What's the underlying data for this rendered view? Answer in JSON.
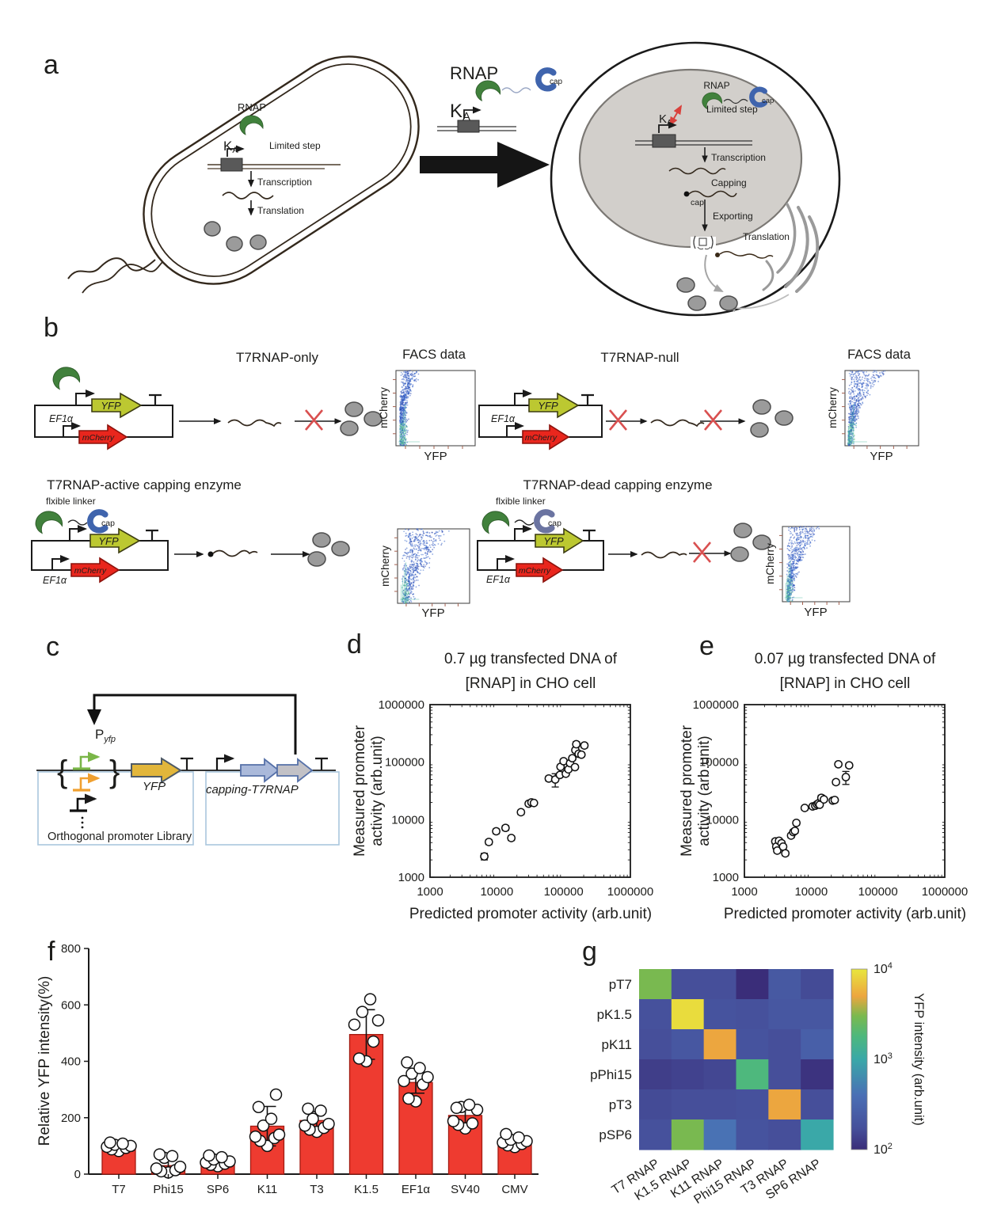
{
  "panel_a": {
    "label": "a",
    "bact": {
      "rnap": "RNAP",
      "k": "K",
      "k_sub": "A",
      "limited": "Limited step",
      "transcription": "Transcription",
      "translation": "Translation"
    },
    "mid": {
      "rnap": "RNAP",
      "k": "K",
      "k_sub": "A",
      "cap": "cap"
    },
    "cell": {
      "rnap": "RNAP",
      "k": "K",
      "k_sub": "A",
      "cap": "cap",
      "limited": "Limited step",
      "transcription": "Transcription",
      "capping": "Capping",
      "cap2": "cap",
      "exporting": "Exporting",
      "translation": "Translation"
    }
  },
  "panel_b": {
    "label": "b",
    "groups": [
      {
        "title": "T7RNAP-only",
        "facs_title": "FACS data",
        "yfp": "YFP",
        "mcherry": "mCherry",
        "ef1a": "EF1α",
        "facs_x": "YFP",
        "facs_y": "mCherry"
      },
      {
        "title": "T7RNAP-null",
        "facs_title": "FACS data",
        "yfp": "YFP",
        "mcherry": "mCherry",
        "ef1a": "EF1α",
        "facs_x": "YFP",
        "facs_y": "mCherry"
      },
      {
        "title": "T7RNAP-active capping enzyme",
        "linker": "flxible linker",
        "cap": "cap",
        "yfp": "YFP",
        "mcherry": "mCherry",
        "ef1a": "EF1α",
        "facs_x": "YFP",
        "facs_y": "mCherry"
      },
      {
        "title": "T7RNAP-dead capping enzyme",
        "linker": "flxible linker",
        "cap": "cap",
        "yfp": "YFP",
        "mcherry": "mCherry",
        "ef1a": "EF1α",
        "facs_x": "YFP",
        "facs_y": "mCherry"
      }
    ]
  },
  "panel_c": {
    "label": "c",
    "p": "P",
    "p_sub": "yfp",
    "yfp": "YFP",
    "library": "Orthogonal promoter Library",
    "capping_t7": "capping-T7RNAP"
  },
  "colors": {
    "rnap_green": "#41813c",
    "cap_blue": "#3f64ad",
    "cap_dead": "#6b74a1",
    "yfp_arrow": "#bcc831",
    "mcherry_arrow": "#e9261d",
    "bar_red": "#ee3b30",
    "red_x": "#d95050",
    "protein_gray": "#9b9b9b",
    "nucleus_gray": "#d2cfcb",
    "box_blue_border": "#aac6dd",
    "promoter_green": "#7ab648",
    "promoter_orange": "#f0a030",
    "yfp_gold": "#e2b63b",
    "capping_arrow1": "#aab9da",
    "capping_arrow2": "#c2c1c6"
  },
  "chart_data": [
    {
      "id": "panel_d",
      "type": "scatter",
      "panel_label": "d",
      "title_lines": [
        "0.7 µg transfected DNA of",
        "[RNAP] in CHO cell"
      ],
      "xlabel": "Predicted promoter activity (arb.unit)",
      "ylabel_lines": [
        "Measured promoter",
        "activity (arb.unit)"
      ],
      "xticks": [
        "1000",
        "10000",
        "100000",
        "1000000"
      ],
      "yticks": [
        "1000",
        "10000",
        "100000",
        "1000000"
      ],
      "xlim": [
        1000,
        1000000
      ],
      "ylim": [
        1000,
        1000000
      ],
      "log": true,
      "points": [
        [
          6500,
          2300,
          300
        ],
        [
          7600,
          4100,
          400
        ],
        [
          9800,
          6300,
          600
        ],
        [
          13500,
          7200,
          700
        ],
        [
          16500,
          4800,
          450
        ],
        [
          23000,
          13500,
          1200
        ],
        [
          30000,
          19000,
          1500
        ],
        [
          33000,
          20000,
          1500
        ],
        [
          36000,
          19500,
          1300
        ],
        [
          60000,
          52000,
          5000
        ],
        [
          75000,
          50000,
          13000
        ],
        [
          88000,
          60000,
          5000
        ],
        [
          90000,
          83000,
          6000
        ],
        [
          100000,
          104000,
          8000
        ],
        [
          108000,
          63000,
          5000
        ],
        [
          118000,
          75000,
          6000
        ],
        [
          125000,
          96000,
          7000
        ],
        [
          135000,
          117000,
          9000
        ],
        [
          148000,
          82000,
          6000
        ],
        [
          150000,
          162000,
          13000
        ],
        [
          155000,
          205000,
          22000
        ],
        [
          168000,
          140000,
          11000
        ],
        [
          185000,
          135000,
          10000
        ],
        [
          205000,
          195000,
          18000
        ]
      ]
    },
    {
      "id": "panel_e",
      "type": "scatter",
      "panel_label": "e",
      "title_lines": [
        "0.07 µg transfected DNA of",
        "[RNAP] in CHO cell"
      ],
      "xlabel": "Predicted promoter activity (arb.unit)",
      "ylabel_lines": [
        "Measured promoter",
        "activity (arb.unit)"
      ],
      "xticks": [
        "1000",
        "10000",
        "100000",
        "1000000"
      ],
      "yticks": [
        "1000",
        "10000",
        "100000",
        "1000000"
      ],
      "xlim": [
        1000,
        1000000
      ],
      "ylim": [
        1000,
        1000000
      ],
      "log": true,
      "points": [
        [
          2900,
          4200,
          400
        ],
        [
          3000,
          3400,
          300
        ],
        [
          3100,
          2900,
          260
        ],
        [
          3300,
          4300,
          380
        ],
        [
          3600,
          3900,
          350
        ],
        [
          3800,
          3400,
          300
        ],
        [
          4100,
          2600,
          240
        ],
        [
          5000,
          5300,
          480
        ],
        [
          5400,
          6100,
          550
        ],
        [
          5700,
          6400,
          580
        ],
        [
          6000,
          8800,
          800
        ],
        [
          8000,
          16000,
          1300
        ],
        [
          10500,
          17000,
          1300
        ],
        [
          11500,
          17500,
          1300
        ],
        [
          12200,
          18500,
          1400
        ],
        [
          12800,
          19200,
          1400
        ],
        [
          13400,
          18200,
          1300
        ],
        [
          14200,
          24000,
          2600
        ],
        [
          15500,
          22500,
          1700
        ],
        [
          21000,
          21500,
          1500
        ],
        [
          22500,
          22000,
          1600
        ],
        [
          23500,
          45000,
          4000
        ],
        [
          25500,
          92000,
          7000
        ],
        [
          33000,
          55000,
          14000
        ],
        [
          37000,
          88000,
          7000
        ]
      ]
    },
    {
      "id": "panel_f",
      "type": "bar",
      "panel_label": "f",
      "ylabel": "Relative YFP intensity(%)",
      "ylim": [
        0,
        800
      ],
      "yticks": [
        0,
        200,
        400,
        600,
        800
      ],
      "categories": [
        "T7",
        "Phi15",
        "SP6",
        "K11",
        "T3",
        "K1.5",
        "EF1α",
        "SV40",
        "CMV"
      ],
      "values": [
        95,
        30,
        42,
        170,
        190,
        495,
        325,
        208,
        112
      ],
      "errors": [
        12,
        20,
        14,
        70,
        32,
        88,
        38,
        32,
        14
      ],
      "points": [
        [
          82,
          88,
          93,
          97,
          100,
          104,
          108,
          112
        ],
        [
          6,
          10,
          14,
          20,
          26,
          58,
          64,
          70
        ],
        [
          28,
          33,
          37,
          41,
          45,
          52,
          60,
          66
        ],
        [
          100,
          118,
          128,
          133,
          140,
          172,
          196,
          238,
          282
        ],
        [
          150,
          158,
          164,
          172,
          178,
          196,
          225,
          232
        ],
        [
          400,
          410,
          470,
          530,
          545,
          575,
          620
        ],
        [
          258,
          268,
          318,
          330,
          344,
          356,
          376,
          396
        ],
        [
          162,
          175,
          180,
          188,
          228,
          238,
          246,
          235
        ],
        [
          96,
          102,
          107,
          112,
          117,
          122,
          130,
          142
        ]
      ]
    },
    {
      "id": "panel_g",
      "type": "heatmap",
      "panel_label": "g",
      "rows": [
        "pT7",
        "pK1.5",
        "pK11",
        "pPhi15",
        "pT3",
        "pSP6"
      ],
      "cols": [
        "T7 RNAP",
        "K1.5 RNAP",
        "K11 RNAP",
        "Phi15 RNAP",
        "T3 RNAP",
        "SP6 RNAP"
      ],
      "values": [
        [
          3000,
          170,
          170,
          70,
          220,
          160
        ],
        [
          180,
          9000,
          190,
          180,
          210,
          210
        ],
        [
          170,
          210,
          5000,
          190,
          170,
          260
        ],
        [
          130,
          140,
          150,
          1800,
          170,
          110
        ],
        [
          160,
          170,
          170,
          180,
          5000,
          170
        ],
        [
          180,
          3000,
          420,
          190,
          170,
          1000
        ]
      ],
      "scale": "log",
      "vmin": 100,
      "vmax": 10000,
      "colormap": [
        [
          0,
          "#3a2d79"
        ],
        [
          0.12,
          "#46509b"
        ],
        [
          0.3,
          "#4a6fb5"
        ],
        [
          0.5,
          "#3aa8a8"
        ],
        [
          0.63,
          "#4eb87c"
        ],
        [
          0.74,
          "#7ab94f"
        ],
        [
          0.85,
          "#eda63f"
        ],
        [
          1,
          "#e8e63d"
        ]
      ],
      "colorbar": {
        "label": "YFP intensity (arb.unit)",
        "ticks": [
          {
            "v": 10000,
            "base": "10",
            "exp": "4"
          },
          {
            "v": 1000,
            "base": "10",
            "exp": "3"
          },
          {
            "v": 100,
            "base": "10",
            "exp": "2"
          }
        ]
      }
    },
    {
      "id": "facs",
      "type": "facs-scatter",
      "plots": [
        {
          "pattern": "tight-column"
        },
        {
          "pattern": "column-diagonal"
        },
        {
          "pattern": "cloud"
        },
        {
          "pattern": "column-bulge"
        }
      ]
    }
  ]
}
